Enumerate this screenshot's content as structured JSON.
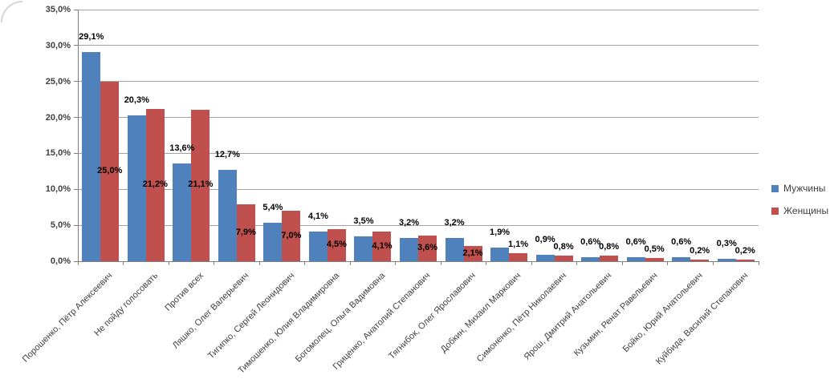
{
  "chart_data": {
    "type": "bar",
    "title": "",
    "xlabel": "",
    "ylabel": "",
    "ylim": [
      0,
      35
    ],
    "ytick_step": 5,
    "ytick_labels": [
      "0,0%",
      "5,0%",
      "10,0%",
      "15,0%",
      "20,0%",
      "25,0%",
      "30,0%",
      "35,0%"
    ],
    "grid": true,
    "legend_position": "right",
    "decimal_separator": ",",
    "value_suffix": "%",
    "categories": [
      "Порошенко, Пётр Алексеевич",
      "Не пойду голосовать",
      "Против всех",
      "Ляшко, Олег Валерьевич",
      "Тигипко, Сергей Леонидович",
      "Тимошенко, Юлия Владимировна",
      "Богомолец, Ольга Вадимовна",
      "Гриценко, Анатолий Степанович",
      "Тягнибок, Олег Ярославович",
      "Добкин, Михаил Маркович",
      "Симоненко, Пётр Николаевич",
      "Ярош, Дмитрий Анатольевич",
      "Кузьмин, Ренат Равельевич",
      "Бойко, Юрий Анатольевич",
      "Куйбида, Василий Степанович"
    ],
    "series": [
      {
        "name": "Мужчины",
        "color": "#4F81BD",
        "values": [
          29.1,
          20.3,
          13.6,
          12.7,
          5.4,
          4.1,
          3.5,
          3.2,
          3.2,
          1.9,
          0.9,
          0.6,
          0.6,
          0.6,
          0.3
        ],
        "labels": [
          "29,1%",
          "20,3%",
          "13,6%",
          "12,7%",
          "5,4%",
          "4,1%",
          "3,5%",
          "3,2%",
          "3,2%",
          "1,9%",
          "0,9%",
          "0,6%",
          "0,6%",
          "0,6%",
          "0,3%"
        ]
      },
      {
        "name": "Женщины",
        "color": "#C0504D",
        "values": [
          25.0,
          21.2,
          21.1,
          7.9,
          7.0,
          4.5,
          4.1,
          3.6,
          2.1,
          1.1,
          0.8,
          0.8,
          0.5,
          0.2,
          0.2
        ],
        "labels": [
          "25,0%",
          "21,2%",
          "21,1%",
          "7,9%",
          "7,0%",
          "4,5%",
          "4,1%",
          "3,6%",
          "2,1%",
          "1,1%",
          "0,8%",
          "0,8%",
          "0,5%",
          "0,2%",
          "0,2%"
        ]
      }
    ],
    "colors": {
      "gridline": "#a3a3a3",
      "axis": "#808080",
      "data_label": "#000000",
      "axis_label": "#404040",
      "frame": "#d6d6d6"
    }
  }
}
